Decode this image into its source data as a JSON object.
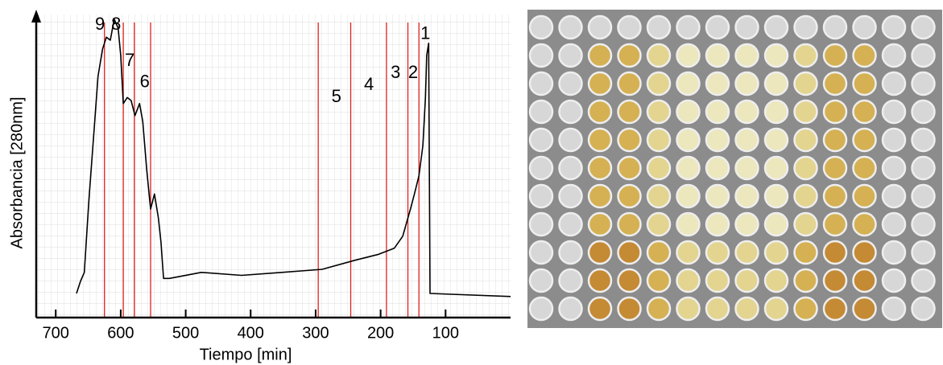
{
  "chart_data": {
    "type": "line",
    "x_label": "Tiempo [min]",
    "y_label": "Absorbancia [280nm]",
    "xlim": [
      730,
      0
    ],
    "ylim": [
      0,
      100
    ],
    "xticks": [
      700,
      600,
      500,
      400,
      300,
      200,
      100
    ],
    "color": "#000000",
    "x": [
      668,
      662,
      656,
      649,
      640,
      635,
      628,
      622,
      616,
      610,
      604,
      600,
      596,
      590,
      584,
      578,
      571,
      566,
      560,
      554,
      548,
      542,
      538,
      534,
      525,
      476,
      414,
      352,
      290,
      240,
      203,
      179,
      166,
      154,
      148,
      141,
      135,
      131,
      129,
      126,
      124,
      0
    ],
    "values": [
      8,
      12,
      15,
      39,
      65,
      80,
      89,
      93,
      92,
      99,
      96,
      87,
      71,
      73,
      72,
      67,
      71,
      65,
      49,
      36,
      41,
      33,
      25,
      13,
      13,
      15,
      14,
      15,
      16,
      19,
      21,
      23,
      27,
      36,
      41,
      47,
      57,
      73,
      87,
      91,
      8,
      7
    ],
    "fraction_lines": {
      "color": "#e02020",
      "x": [
        625,
        596,
        579,
        554,
        296,
        246,
        191,
        158,
        141
      ]
    },
    "fraction_labels": [
      {
        "text": "9",
        "x": 632,
        "y": 97
      },
      {
        "text": "8",
        "x": 607,
        "y": 97
      },
      {
        "text": "7",
        "x": 586,
        "y": 85
      },
      {
        "text": "6",
        "x": 563,
        "y": 78
      },
      {
        "text": "5",
        "x": 268,
        "y": 73
      },
      {
        "text": "4",
        "x": 218,
        "y": 77
      },
      {
        "text": "3",
        "x": 177,
        "y": 81
      },
      {
        "text": "2",
        "x": 150,
        "y": 81
      },
      {
        "text": "1",
        "x": 131,
        "y": 94
      }
    ]
  }
}
